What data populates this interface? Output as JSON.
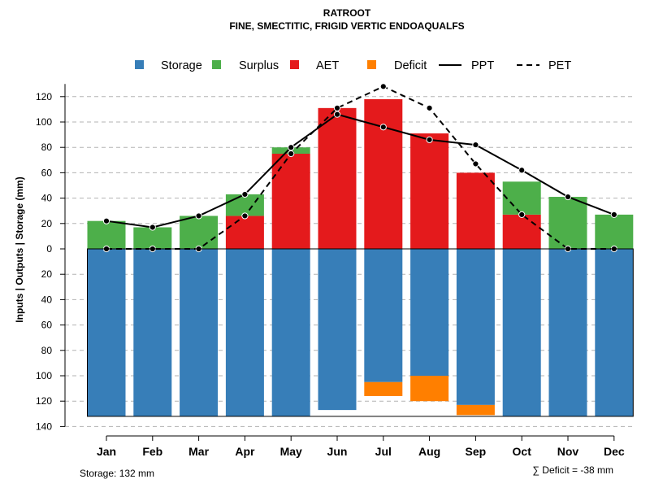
{
  "chart_data": {
    "type": "bar",
    "title": "RATROOT",
    "subtitle": "FINE, SMECTITIC, FRIGID VERTIC ENDOAQUALFS",
    "ylabel": "Inputs | Outputs | Storage    (mm)",
    "ylim": [
      -140,
      130
    ],
    "yticks": [
      120,
      100,
      80,
      60,
      40,
      20,
      0,
      -20,
      -40,
      -60,
      -80,
      -100,
      -120,
      -140
    ],
    "ytick_labels": [
      "120",
      "100",
      "80",
      "60",
      "40",
      "20",
      "0",
      "20",
      "40",
      "60",
      "80",
      "100",
      "120",
      "140"
    ],
    "grid": true,
    "categories": [
      "Jan",
      "Feb",
      "Mar",
      "Apr",
      "May",
      "Jun",
      "Jul",
      "Aug",
      "Sep",
      "Oct",
      "Nov",
      "Dec"
    ],
    "legend_position": "top",
    "legend": [
      {
        "name": "Storage",
        "kind": "box",
        "color": "#377EB8"
      },
      {
        "name": "Surplus",
        "kind": "box",
        "color": "#4DAF4A"
      },
      {
        "name": "AET",
        "kind": "box",
        "color": "#E41A1C"
      },
      {
        "name": "Deficit",
        "kind": "box",
        "color": "#FF7F00"
      },
      {
        "name": "PPT",
        "kind": "solid-line",
        "color": "#000000"
      },
      {
        "name": "PET",
        "kind": "dashed-line",
        "color": "#000000"
      }
    ],
    "series": [
      {
        "name": "AET",
        "color": "#E41A1C",
        "values": [
          0,
          0,
          0,
          26,
          75,
          111,
          118,
          91,
          60,
          27,
          0,
          0
        ]
      },
      {
        "name": "Surplus",
        "color": "#4DAF4A",
        "values": [
          22,
          17,
          26,
          17,
          5,
          0,
          0,
          0,
          0,
          26,
          41,
          27
        ]
      },
      {
        "name": "Storage",
        "color": "#377EB8",
        "values": [
          -132,
          -132,
          -132,
          -132,
          -132,
          -127,
          -105,
          -100,
          -123,
          -132,
          -132,
          -132
        ]
      },
      {
        "name": "Deficit",
        "color": "#FF7F00",
        "values": [
          0,
          0,
          0,
          0,
          0,
          0,
          -11,
          -20,
          -8,
          0,
          0,
          0
        ]
      },
      {
        "name": "PPT",
        "color": "#000000",
        "values": [
          22,
          17,
          26,
          43,
          80,
          106,
          96,
          86,
          82,
          62,
          41,
          27
        ]
      },
      {
        "name": "PET",
        "color": "#000000",
        "values": [
          0,
          0,
          0,
          26,
          75,
          111,
          128,
          111,
          67,
          27,
          0,
          0
        ]
      }
    ],
    "annotations": {
      "storage": "Storage: 132 mm",
      "deficit": "∑ Deficit = -38 mm"
    }
  }
}
